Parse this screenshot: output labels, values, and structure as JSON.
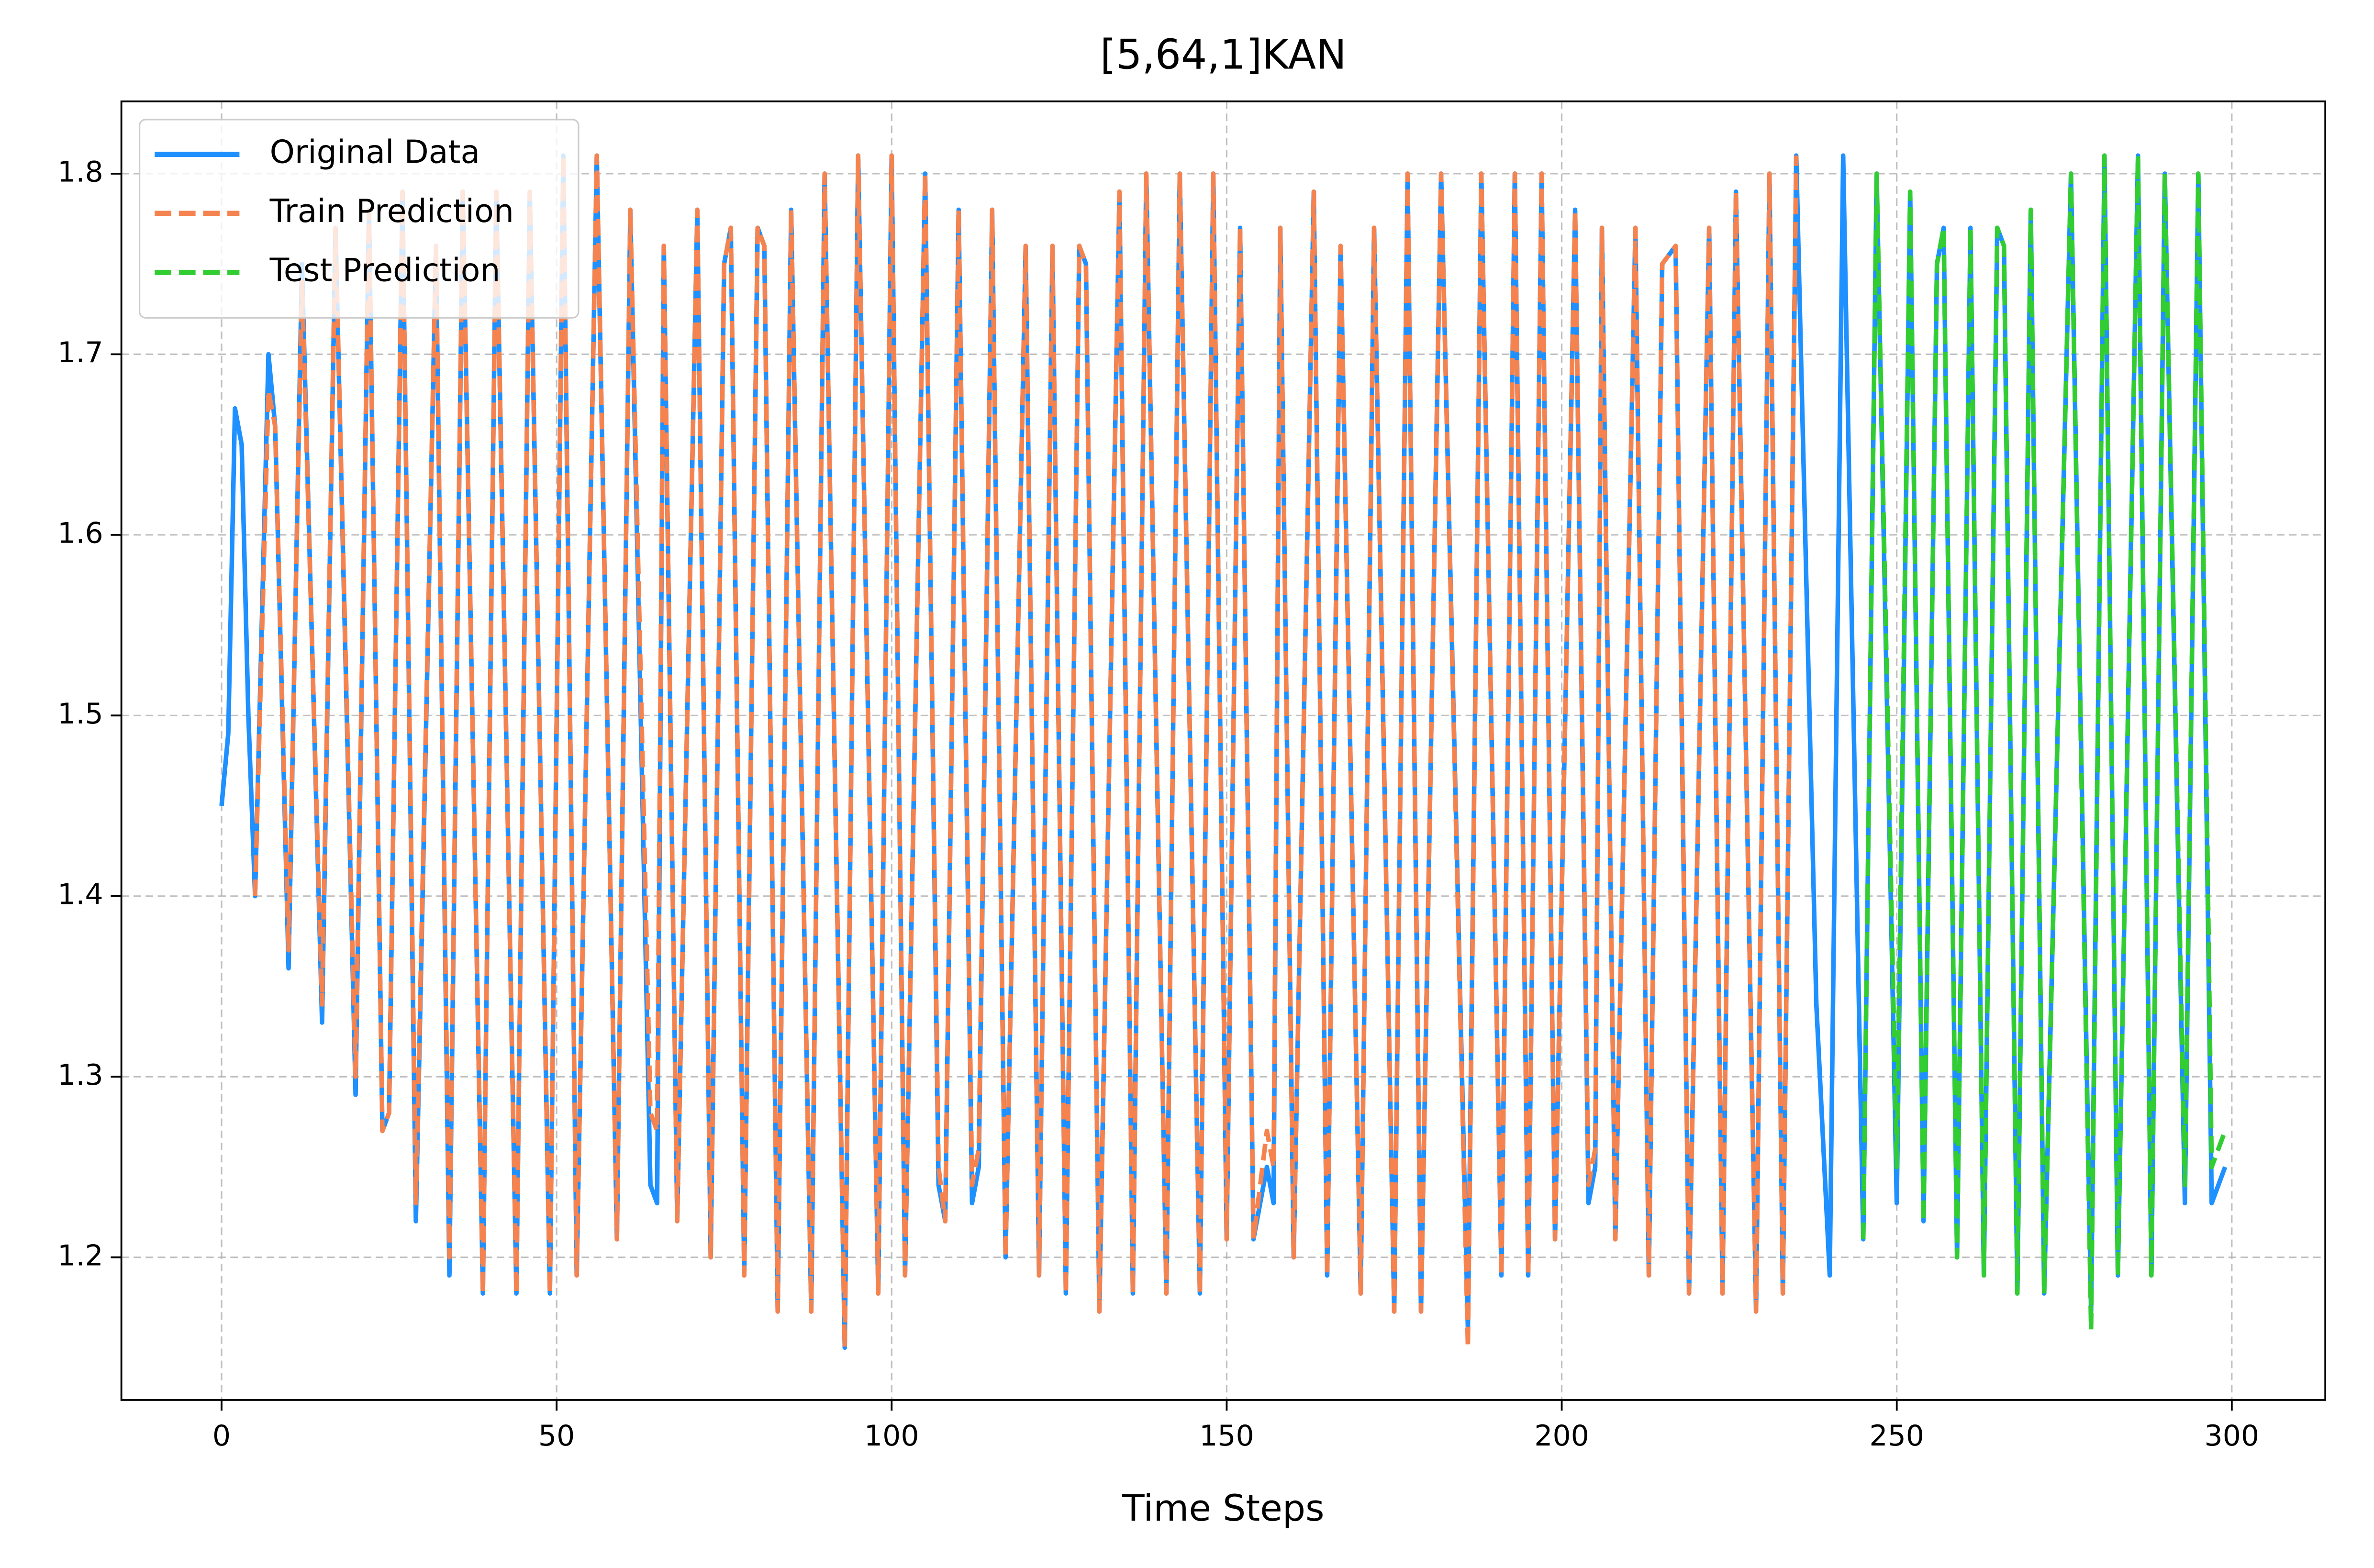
{
  "chart_data": {
    "type": "line",
    "title": "[5,64,1]KAN",
    "x_label": "Time Steps",
    "xlim": [
      -14.95,
      313.95
    ],
    "ylim": [
      1.121,
      1.84
    ],
    "xticks": [
      0,
      50,
      100,
      150,
      200,
      250,
      300
    ],
    "yticks": [
      1.2,
      1.3,
      1.4,
      1.5,
      1.6,
      1.7,
      1.8
    ],
    "grid": true,
    "legend": "upper left",
    "series": [
      {
        "name": "Original Data",
        "color": "#1e90ff",
        "style": "solid",
        "x": [
          0,
          1,
          2,
          3,
          4,
          5,
          7,
          8,
          10,
          12,
          15,
          17,
          20,
          22,
          24,
          25,
          27,
          29,
          32,
          34,
          36,
          39,
          41,
          44,
          46,
          49,
          51,
          53,
          56,
          59,
          61,
          64,
          65,
          66,
          68,
          71,
          73,
          75,
          76,
          78,
          80,
          81,
          83,
          85,
          88,
          90,
          93,
          95,
          98,
          100,
          102,
          105,
          107,
          108,
          110,
          112,
          113,
          115,
          117,
          120,
          122,
          124,
          126,
          128,
          129,
          131,
          134,
          136,
          138,
          141,
          143,
          146,
          148,
          150,
          152,
          154,
          156,
          157,
          158,
          160,
          163,
          165,
          167,
          170,
          172,
          175,
          177,
          179,
          182,
          186,
          188,
          191,
          193,
          195,
          197,
          199,
          202,
          204,
          205,
          206,
          208,
          211,
          213,
          215,
          217,
          219,
          222,
          224,
          226,
          229,
          231,
          233,
          235,
          238,
          240,
          242,
          245,
          247,
          250,
          252,
          254,
          256,
          257,
          259,
          261,
          263,
          265,
          266,
          268,
          270,
          272,
          276,
          279,
          281,
          283,
          286,
          288,
          290,
          293,
          295,
          297,
          299
        ],
        "values": [
          1.45,
          1.49,
          1.67,
          1.65,
          1.5,
          1.4,
          1.7,
          1.66,
          1.36,
          1.75,
          1.33,
          1.77,
          1.29,
          1.78,
          1.27,
          1.28,
          1.79,
          1.22,
          1.76,
          1.19,
          1.79,
          1.18,
          1.79,
          1.18,
          1.79,
          1.18,
          1.81,
          1.19,
          1.81,
          1.21,
          1.78,
          1.24,
          1.23,
          1.76,
          1.22,
          1.78,
          1.2,
          1.75,
          1.77,
          1.19,
          1.77,
          1.76,
          1.17,
          1.78,
          1.17,
          1.8,
          1.15,
          1.81,
          1.18,
          1.81,
          1.19,
          1.8,
          1.24,
          1.22,
          1.78,
          1.23,
          1.25,
          1.78,
          1.2,
          1.76,
          1.19,
          1.76,
          1.18,
          1.76,
          1.75,
          1.17,
          1.79,
          1.18,
          1.8,
          1.18,
          1.8,
          1.18,
          1.8,
          1.21,
          1.77,
          1.21,
          1.25,
          1.23,
          1.77,
          1.2,
          1.79,
          1.19,
          1.76,
          1.18,
          1.77,
          1.17,
          1.8,
          1.17,
          1.8,
          1.16,
          1.8,
          1.19,
          1.8,
          1.19,
          1.8,
          1.21,
          1.78,
          1.23,
          1.25,
          1.77,
          1.21,
          1.77,
          1.19,
          1.75,
          1.76,
          1.18,
          1.77,
          1.18,
          1.79,
          1.17,
          1.8,
          1.18,
          1.81,
          1.34,
          1.19,
          1.81,
          1.21,
          1.8,
          1.23,
          1.79,
          1.22,
          1.75,
          1.77,
          1.2,
          1.77,
          1.19,
          1.77,
          1.76,
          1.18,
          1.78,
          1.18,
          1.8,
          1.17,
          1.81,
          1.19,
          1.81,
          1.19,
          1.8,
          1.23,
          1.8,
          1.23,
          1.25
        ]
      },
      {
        "name": "Train Prediction",
        "color": "#f5834f",
        "style": "dashed",
        "x": [
          5,
          7,
          8,
          10,
          12,
          15,
          17,
          20,
          22,
          24,
          25,
          27,
          29,
          32,
          34,
          36,
          39,
          41,
          44,
          46,
          49,
          51,
          53,
          56,
          59,
          61,
          64,
          65,
          66,
          68,
          71,
          73,
          75,
          76,
          78,
          80,
          81,
          83,
          85,
          88,
          90,
          93,
          95,
          98,
          100,
          102,
          105,
          107,
          108,
          110,
          112,
          113,
          115,
          117,
          120,
          122,
          124,
          126,
          128,
          129,
          131,
          134,
          136,
          138,
          141,
          143,
          146,
          148,
          150,
          152,
          154,
          156,
          157,
          158,
          160,
          163,
          165,
          167,
          170,
          172,
          175,
          177,
          179,
          182,
          186,
          188,
          191,
          193,
          195,
          197,
          199,
          202,
          204,
          205,
          206,
          208,
          211,
          213,
          215,
          217,
          219,
          222,
          224,
          226,
          229,
          231,
          233,
          235
        ],
        "values": [
          1.4,
          1.68,
          1.66,
          1.37,
          1.74,
          1.34,
          1.77,
          1.3,
          1.78,
          1.27,
          1.28,
          1.79,
          1.23,
          1.76,
          1.2,
          1.79,
          1.18,
          1.79,
          1.18,
          1.79,
          1.18,
          1.81,
          1.19,
          1.81,
          1.21,
          1.78,
          1.28,
          1.27,
          1.76,
          1.22,
          1.78,
          1.2,
          1.75,
          1.77,
          1.19,
          1.77,
          1.76,
          1.17,
          1.78,
          1.17,
          1.8,
          1.15,
          1.81,
          1.18,
          1.81,
          1.19,
          1.8,
          1.25,
          1.22,
          1.78,
          1.24,
          1.26,
          1.78,
          1.2,
          1.76,
          1.19,
          1.76,
          1.18,
          1.76,
          1.75,
          1.17,
          1.79,
          1.18,
          1.8,
          1.18,
          1.8,
          1.18,
          1.8,
          1.21,
          1.77,
          1.21,
          1.27,
          1.25,
          1.77,
          1.2,
          1.79,
          1.19,
          1.76,
          1.18,
          1.77,
          1.17,
          1.8,
          1.17,
          1.8,
          1.15,
          1.8,
          1.19,
          1.8,
          1.19,
          1.8,
          1.21,
          1.78,
          1.24,
          1.26,
          1.77,
          1.21,
          1.77,
          1.19,
          1.75,
          1.76,
          1.18,
          1.77,
          1.18,
          1.79,
          1.17,
          1.8,
          1.18,
          1.81
        ]
      },
      {
        "name": "Test Prediction",
        "color": "#32cd32",
        "style": "dashed",
        "x": [
          245,
          247,
          250,
          252,
          254,
          256,
          257,
          259,
          261,
          263,
          265,
          266,
          268,
          270,
          272,
          276,
          279,
          281,
          283,
          286,
          288,
          290,
          293,
          295,
          297,
          299
        ],
        "values": [
          1.21,
          1.8,
          1.25,
          1.79,
          1.22,
          1.75,
          1.77,
          1.2,
          1.77,
          1.19,
          1.77,
          1.76,
          1.18,
          1.78,
          1.18,
          1.8,
          1.16,
          1.81,
          1.19,
          1.81,
          1.19,
          1.8,
          1.24,
          1.8,
          1.25,
          1.27
        ]
      }
    ]
  }
}
